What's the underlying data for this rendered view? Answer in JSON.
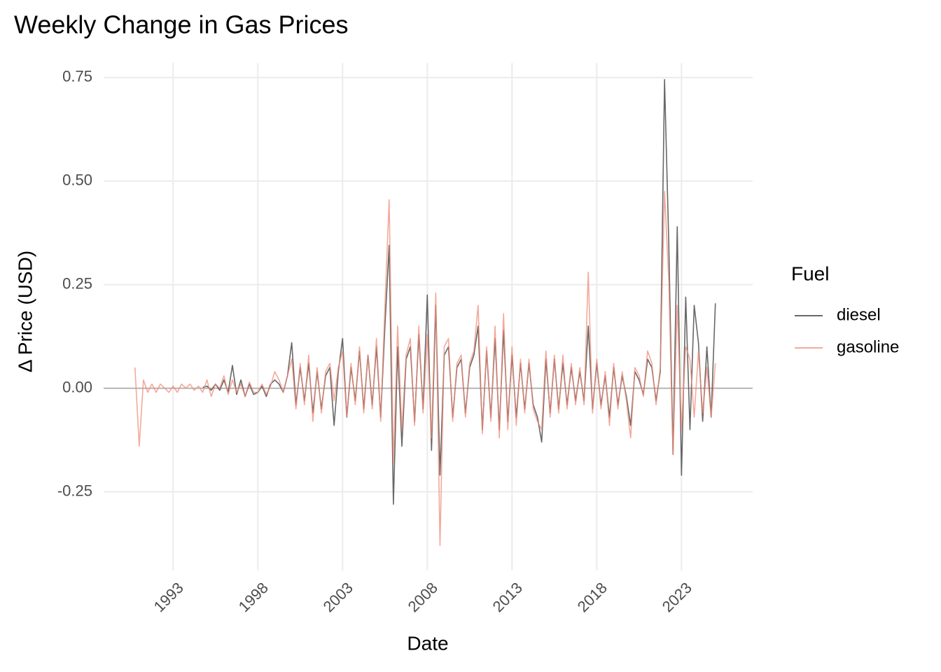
{
  "chart_data": {
    "type": "line",
    "title": "Weekly Change in Gas Prices",
    "x_label": "Date",
    "y_label": "Δ Price (USD)",
    "legend_title": "Fuel",
    "legend": "right",
    "grid": true,
    "hline": 0,
    "xlim": [
      1988.9,
      2027.2
    ],
    "xticks": [
      1993,
      1998,
      2003,
      2008,
      2013,
      2018,
      2023
    ],
    "ylim": [
      -0.44,
      0.785
    ],
    "yticks": [
      {
        "value": -0.25,
        "label": "-0.25"
      },
      {
        "value": 0,
        "label": "0.00"
      },
      {
        "value": 0.25,
        "label": "0.25"
      },
      {
        "value": 0.5,
        "label": "0.50"
      },
      {
        "value": 0.75,
        "label": "0.75"
      }
    ],
    "x": [
      1990.75,
      1991,
      1991.25,
      1991.5,
      1991.75,
      1992,
      1992.25,
      1992.5,
      1992.75,
      1993,
      1993.25,
      1993.5,
      1993.75,
      1994,
      1994.25,
      1994.5,
      1994.75,
      1995,
      1995.25,
      1995.5,
      1995.75,
      1996,
      1996.25,
      1996.5,
      1996.75,
      1997,
      1997.25,
      1997.5,
      1997.75,
      1998,
      1998.25,
      1998.5,
      1998.75,
      1999,
      1999.25,
      1999.5,
      1999.75,
      2000,
      2000.25,
      2000.5,
      2000.75,
      2001,
      2001.25,
      2001.5,
      2001.75,
      2002,
      2002.25,
      2002.5,
      2002.75,
      2003,
      2003.25,
      2003.5,
      2003.75,
      2004,
      2004.25,
      2004.5,
      2004.75,
      2005,
      2005.25,
      2005.5,
      2005.75,
      2006,
      2006.25,
      2006.5,
      2006.75,
      2007,
      2007.25,
      2007.5,
      2007.75,
      2008,
      2008.25,
      2008.5,
      2008.75,
      2009,
      2009.25,
      2009.5,
      2009.75,
      2010,
      2010.25,
      2010.5,
      2010.75,
      2011,
      2011.25,
      2011.5,
      2011.75,
      2012,
      2012.25,
      2012.5,
      2012.75,
      2013,
      2013.25,
      2013.5,
      2013.75,
      2014,
      2014.25,
      2014.5,
      2014.75,
      2015,
      2015.25,
      2015.5,
      2015.75,
      2016,
      2016.25,
      2016.5,
      2016.75,
      2017,
      2017.25,
      2017.5,
      2017.75,
      2018,
      2018.25,
      2018.5,
      2018.75,
      2019,
      2019.25,
      2019.5,
      2019.75,
      2020,
      2020.25,
      2020.5,
      2020.75,
      2021,
      2021.25,
      2021.5,
      2021.75,
      2022,
      2022.25,
      2022.5,
      2022.75,
      2023,
      2023.25,
      2023.5,
      2023.75,
      2024,
      2024.25,
      2024.5,
      2024.75,
      2025
    ],
    "series": [
      {
        "name": "diesel",
        "color": "#4d4d4d",
        "values": [
          null,
          null,
          null,
          null,
          null,
          null,
          null,
          null,
          null,
          null,
          null,
          null,
          null,
          null,
          null,
          null,
          0.002,
          0.005,
          -0.005,
          0.01,
          -0.005,
          0.02,
          -0.01,
          0.055,
          -0.015,
          0.02,
          -0.02,
          0.01,
          -0.015,
          -0.01,
          0.005,
          -0.02,
          0.01,
          0.02,
          0.01,
          -0.01,
          0.03,
          0.11,
          -0.04,
          0.05,
          -0.03,
          0.06,
          -0.06,
          0.04,
          -0.05,
          0.03,
          0.05,
          -0.09,
          0.04,
          0.12,
          -0.07,
          0.05,
          -0.03,
          0.09,
          -0.05,
          0.08,
          -0.04,
          0.1,
          -0.07,
          0.15,
          0.345,
          -0.28,
          0.1,
          -0.14,
          0.07,
          0.1,
          -0.08,
          0.13,
          -0.05,
          0.225,
          -0.15,
          0.2,
          -0.21,
          0.08,
          0.1,
          -0.07,
          0.05,
          0.07,
          -0.06,
          0.05,
          0.08,
          0.15,
          -0.1,
          0.09,
          -0.07,
          0.12,
          -0.1,
          0.14,
          -0.08,
          0.08,
          -0.07,
          0.06,
          -0.05,
          0.06,
          -0.04,
          -0.07,
          -0.13,
          0.07,
          -0.06,
          0.07,
          -0.05,
          0.06,
          -0.04,
          0.05,
          -0.03,
          0.04,
          -0.03,
          0.15,
          -0.05,
          0.06,
          -0.04,
          0.03,
          -0.07,
          0.05,
          -0.04,
          0.03,
          -0.02,
          -0.09,
          0.04,
          0.02,
          -0.015,
          0.07,
          0.05,
          -0.03,
          0.04,
          0.745,
          0.35,
          -0.16,
          0.39,
          -0.21,
          0.22,
          -0.1,
          0.2,
          0.11,
          -0.08,
          0.1,
          -0.07,
          0.205
        ]
      },
      {
        "name": "gasoline",
        "color": "#f08c7a",
        "values": [
          0.05,
          -0.14,
          0.02,
          -0.01,
          0.01,
          -0.01,
          0.01,
          0.0,
          -0.01,
          0.005,
          -0.01,
          0.01,
          0.0,
          0.01,
          -0.005,
          0.005,
          -0.01,
          0.02,
          -0.02,
          0.01,
          0.0,
          0.03,
          -0.015,
          0.02,
          -0.01,
          0.01,
          -0.02,
          0.015,
          -0.01,
          -0.01,
          0.01,
          -0.015,
          0.005,
          0.04,
          0.02,
          -0.01,
          0.03,
          0.07,
          -0.05,
          0.06,
          -0.04,
          0.08,
          -0.08,
          0.05,
          -0.06,
          0.04,
          0.06,
          -0.03,
          0.05,
          0.09,
          -0.07,
          0.06,
          -0.04,
          0.1,
          -0.06,
          0.08,
          -0.05,
          0.12,
          -0.08,
          0.2,
          0.455,
          -0.18,
          0.15,
          -0.1,
          0.08,
          0.12,
          -0.09,
          0.15,
          -0.06,
          0.13,
          -0.12,
          0.23,
          -0.38,
          0.1,
          0.12,
          -0.08,
          0.06,
          0.08,
          -0.07,
          0.06,
          0.09,
          0.2,
          -0.11,
          0.1,
          -0.08,
          0.15,
          -0.12,
          0.18,
          -0.1,
          0.1,
          -0.09,
          0.07,
          -0.06,
          0.07,
          -0.05,
          -0.08,
          -0.1,
          0.09,
          -0.07,
          0.08,
          -0.06,
          0.08,
          -0.05,
          0.06,
          -0.04,
          0.05,
          -0.04,
          0.28,
          -0.06,
          0.07,
          -0.05,
          0.04,
          -0.09,
          0.06,
          -0.05,
          0.04,
          -0.03,
          -0.12,
          0.05,
          0.03,
          -0.02,
          0.09,
          0.06,
          -0.04,
          0.05,
          0.475,
          0.26,
          -0.16,
          0.2,
          -0.1,
          0.1,
          0.07,
          -0.07,
          0.09,
          -0.06,
          0.05,
          -0.07,
          0.06
        ]
      }
    ]
  }
}
